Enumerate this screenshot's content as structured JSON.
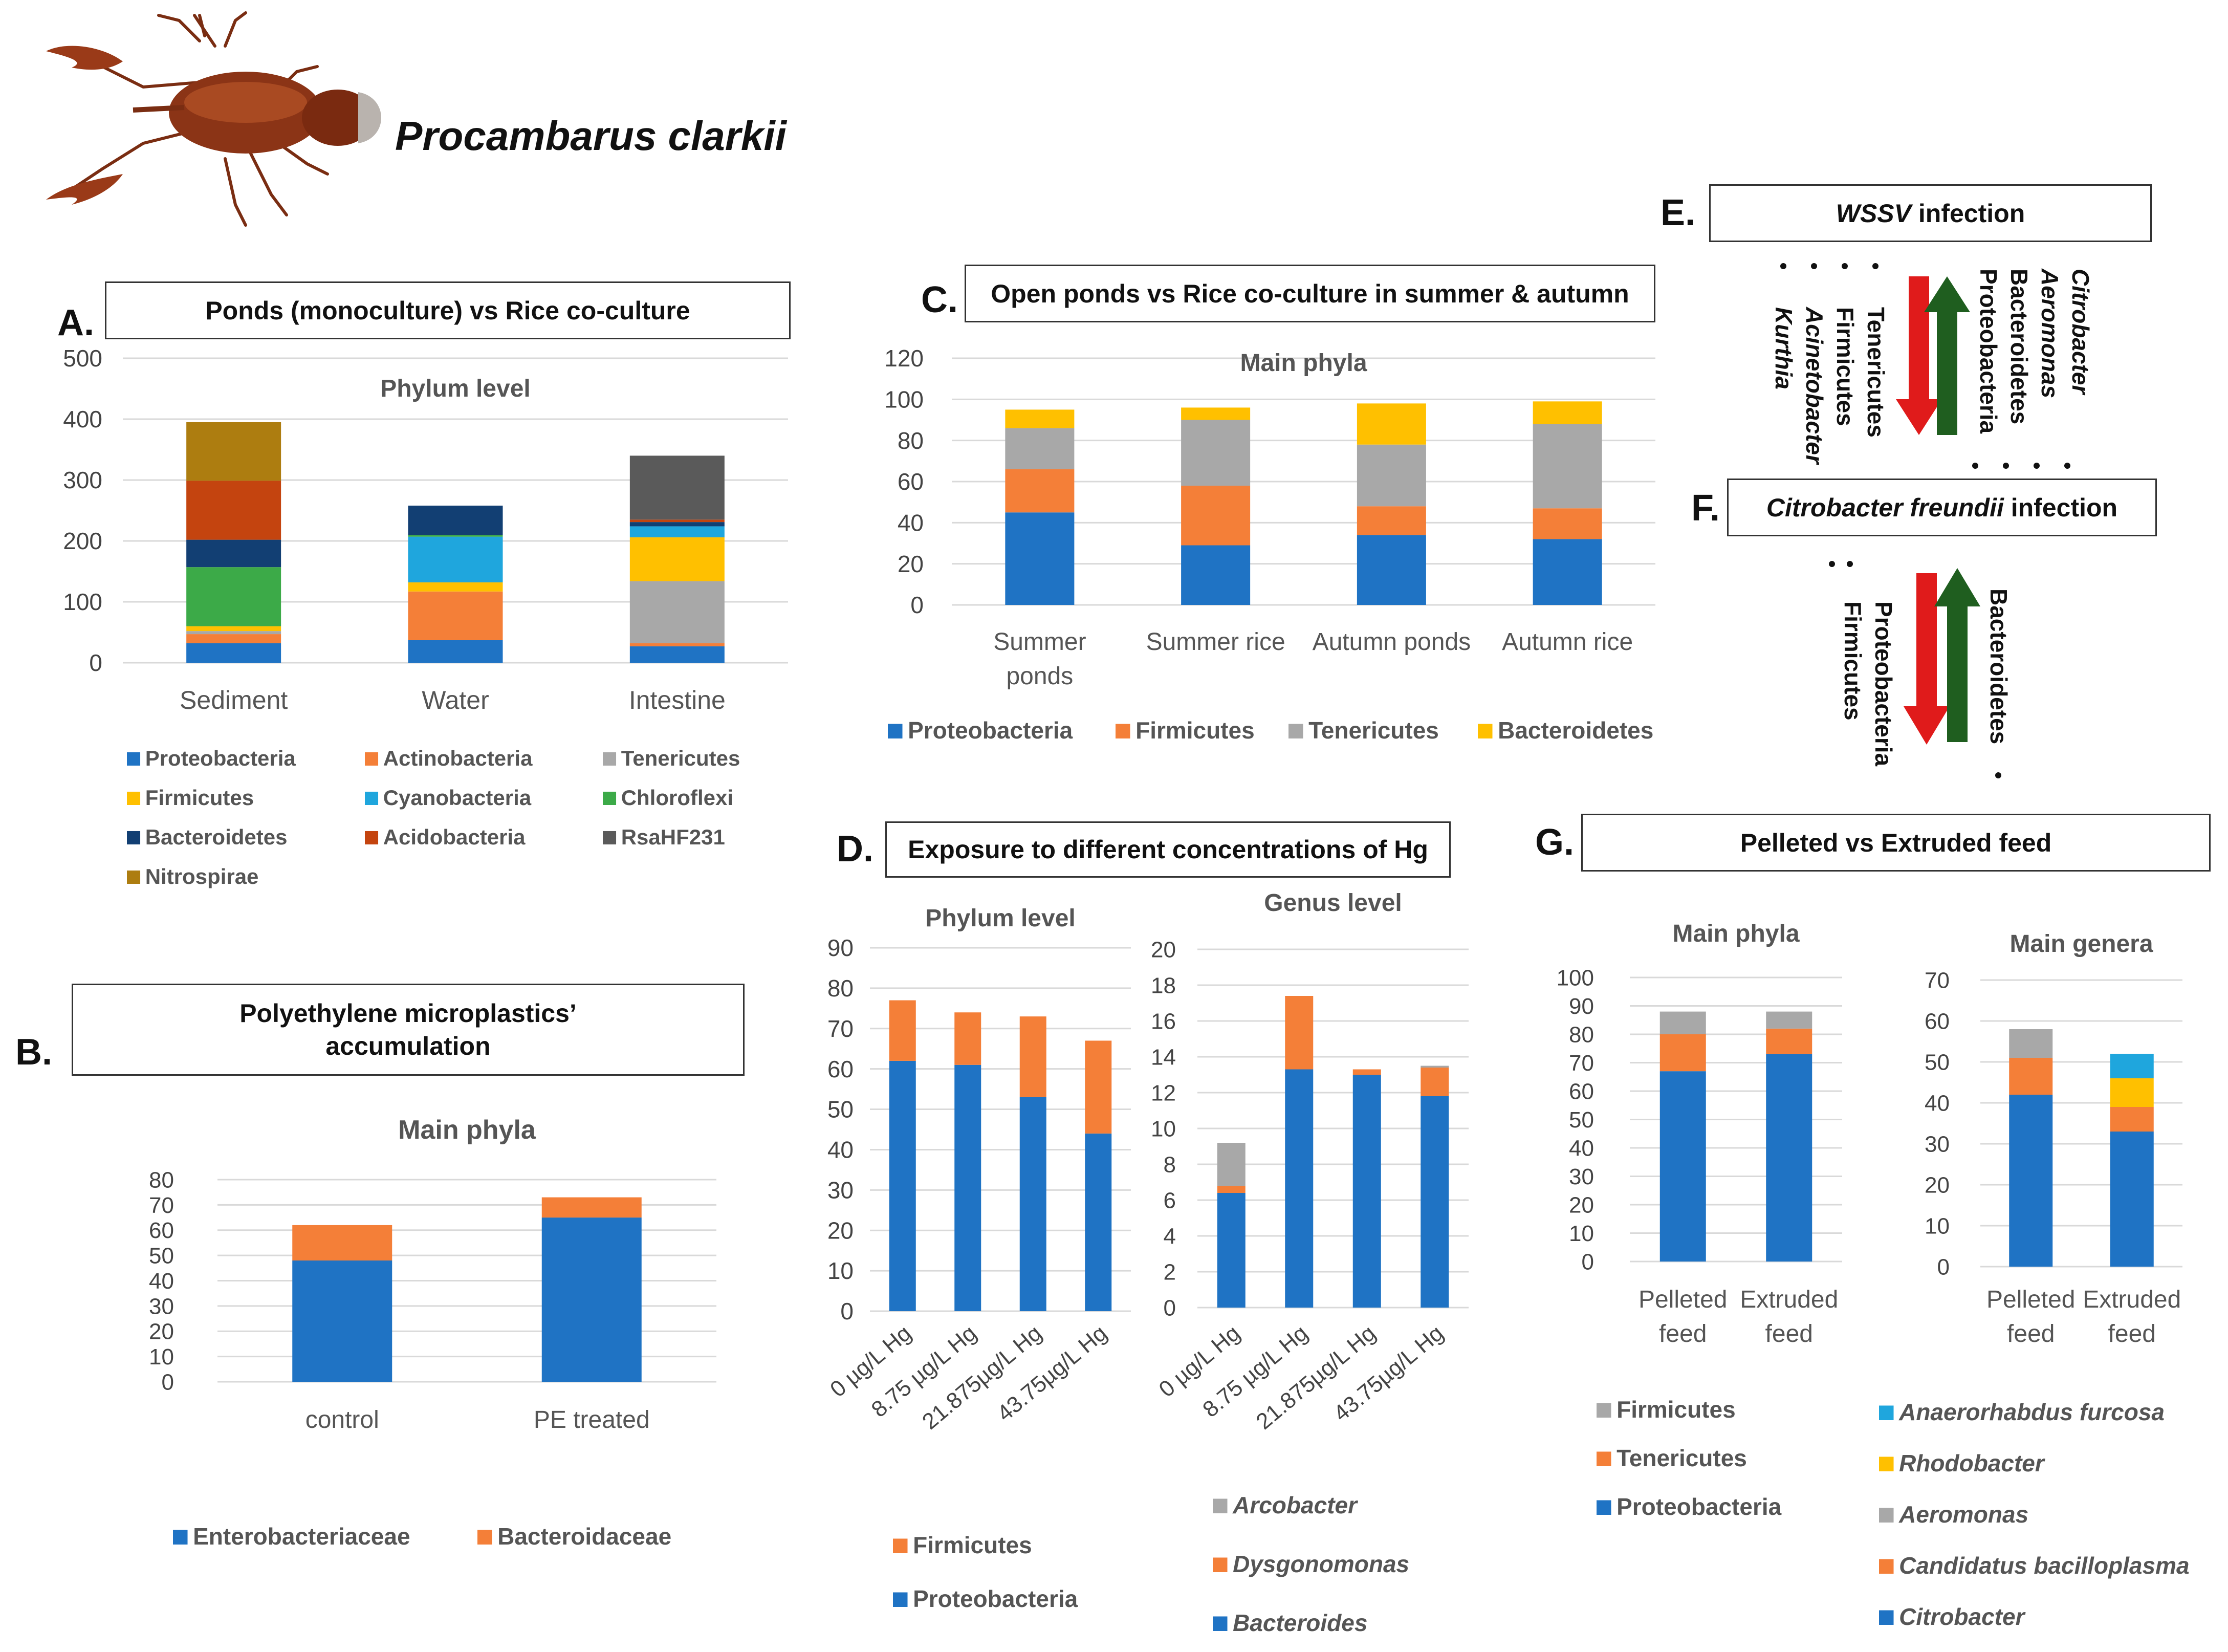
{
  "species": "Procambarus clarkii",
  "panels": {
    "a": {
      "letter": "A.",
      "title": "Ponds (monoculture) vs Rice co-culture"
    },
    "b": {
      "letter": "B.",
      "title_line1": "Polyethylene microplastics’",
      "title_line2": "accumulation"
    },
    "c": {
      "letter": "C.",
      "title": "Open ponds vs Rice co-culture in summer & autumn"
    },
    "d": {
      "letter": "D.",
      "title": "Exposure to different concentrations of Hg"
    },
    "e": {
      "letter": "E.",
      "title_italic": "WSSV",
      "title_rest": " infection",
      "down_taxa": [
        "Tenericutes",
        "Firmicutes",
        "Acinetobacter",
        "Kurthia"
      ],
      "down_italic": [
        false,
        false,
        true,
        true
      ],
      "up_taxa": [
        "Proteobacteria",
        "Bacteroidetes",
        "Aeromonas",
        "Citrobacter"
      ],
      "up_italic": [
        false,
        false,
        true,
        true
      ]
    },
    "f": {
      "letter": "F.",
      "title_italic": "Citrobacter freundii",
      "title_rest": " infection",
      "down_taxa": [
        "Proteobacteria",
        "Firmicutes"
      ],
      "up_taxa": [
        "Bacteroidetes"
      ]
    },
    "g": {
      "letter": "G.",
      "title": "Pelleted vs Extruded feed"
    }
  },
  "colors": {
    "arrow_down": "#e01b1b",
    "arrow_up": "#1f5e1f"
  },
  "chart_data": [
    {
      "id": "A",
      "type": "bar",
      "stacked": true,
      "title": "Phylum level",
      "categories": [
        "Sediment",
        "Water",
        "Intestine"
      ],
      "ylim": [
        0,
        500
      ],
      "yticks": [
        0,
        100,
        200,
        300,
        400,
        500
      ],
      "series": [
        {
          "name": "Proteobacteria",
          "color": "#1f73c4",
          "values": [
            32,
            37,
            27
          ]
        },
        {
          "name": "Actinobacteria",
          "color": "#f47f38",
          "values": [
            15,
            80,
            5
          ]
        },
        {
          "name": "Tenericutes",
          "color": "#a8a8a8",
          "values": [
            5,
            0,
            102
          ]
        },
        {
          "name": "Firmicutes",
          "color": "#ffc000",
          "values": [
            8,
            15,
            72
          ]
        },
        {
          "name": "Cyanobacteria",
          "color": "#1fa6dd",
          "values": [
            0,
            75,
            18
          ]
        },
        {
          "name": "Chloroflexi",
          "color": "#3caa48",
          "values": [
            97,
            3,
            0
          ]
        },
        {
          "name": "Bacteroidetes",
          "color": "#123f73",
          "values": [
            45,
            48,
            7
          ]
        },
        {
          "name": "Acidobacteria",
          "color": "#c4440f",
          "values": [
            97,
            0,
            4
          ]
        },
        {
          "name": "RsaHF231",
          "color": "#5a5a5a",
          "values": [
            0,
            0,
            105
          ]
        },
        {
          "name": "Nitrospirae",
          "color": "#ad7d10",
          "values": [
            96,
            0,
            0
          ]
        }
      ]
    },
    {
      "id": "B",
      "type": "bar",
      "stacked": true,
      "title": "Main phyla",
      "categories": [
        "control",
        "PE treated"
      ],
      "ylim": [
        0,
        80
      ],
      "yticks": [
        0,
        10,
        20,
        30,
        40,
        50,
        60,
        70,
        80
      ],
      "series": [
        {
          "name": "Enterobacteriaceae",
          "color": "#1f73c4",
          "values": [
            48,
            65
          ]
        },
        {
          "name": "Bacteroidaceae",
          "color": "#f47f38",
          "values": [
            14,
            8
          ]
        }
      ]
    },
    {
      "id": "C",
      "type": "bar",
      "stacked": true,
      "title": "Main phyla",
      "categories": [
        "Summer ponds",
        "Summer rice",
        "Autumn ponds",
        "Autumn rice"
      ],
      "ylim": [
        0,
        120
      ],
      "yticks": [
        0,
        20,
        40,
        60,
        80,
        100,
        120
      ],
      "series": [
        {
          "name": "Proteobacteria",
          "color": "#1f73c4",
          "values": [
            45,
            29,
            34,
            32
          ]
        },
        {
          "name": "Firmicutes",
          "color": "#f47f38",
          "values": [
            21,
            29,
            14,
            15
          ]
        },
        {
          "name": "Tenericutes",
          "color": "#a8a8a8",
          "values": [
            20,
            32,
            30,
            41
          ]
        },
        {
          "name": "Bacteroidetes",
          "color": "#ffc000",
          "values": [
            9,
            6,
            20,
            11
          ]
        }
      ]
    },
    {
      "id": "D1",
      "type": "bar",
      "stacked": true,
      "title": "Phylum level",
      "categories": [
        "0 µg/L Hg",
        "8.75 µg/L Hg",
        "21.875µg/L Hg",
        "43.75µg/L Hg"
      ],
      "ylim": [
        0,
        90
      ],
      "yticks": [
        0,
        10,
        20,
        30,
        40,
        50,
        60,
        70,
        80,
        90
      ],
      "series": [
        {
          "name": "Proteobacteria",
          "color": "#1f73c4",
          "values": [
            62,
            61,
            53,
            44
          ]
        },
        {
          "name": "Firmicutes",
          "color": "#f47f38",
          "values": [
            15,
            13,
            20,
            23
          ]
        }
      ]
    },
    {
      "id": "D2",
      "type": "bar",
      "stacked": true,
      "title": "Genus level",
      "categories": [
        "0 µg/L Hg",
        "8.75 µg/L Hg",
        "21.875µg/L Hg",
        "43.75µg/L Hg"
      ],
      "ylim": [
        0,
        20
      ],
      "yticks": [
        0,
        2,
        4,
        6,
        8,
        10,
        12,
        14,
        16,
        18,
        20
      ],
      "series": [
        {
          "name": "Bacteroides",
          "color": "#1f73c4",
          "values": [
            6.4,
            13.3,
            13.0,
            11.8
          ]
        },
        {
          "name": "Dysgonomonas",
          "color": "#f47f38",
          "values": [
            0.4,
            4.1,
            0.3,
            1.6
          ]
        },
        {
          "name": "Arcobacter",
          "color": "#a8a8a8",
          "values": [
            2.4,
            0,
            0,
            0.1
          ]
        }
      ]
    },
    {
      "id": "G1",
      "type": "bar",
      "stacked": true,
      "title": "Main phyla",
      "categories": [
        "Pelleted feed",
        "Extruded feed"
      ],
      "ylim": [
        0,
        100
      ],
      "yticks": [
        0,
        10,
        20,
        30,
        40,
        50,
        60,
        70,
        80,
        90,
        100
      ],
      "series": [
        {
          "name": "Proteobacteria",
          "color": "#1f73c4",
          "values": [
            67,
            73
          ]
        },
        {
          "name": "Tenericutes",
          "color": "#f47f38",
          "values": [
            13,
            9
          ]
        },
        {
          "name": "Firmicutes",
          "color": "#a8a8a8",
          "values": [
            8,
            6
          ]
        }
      ]
    },
    {
      "id": "G2",
      "type": "bar",
      "stacked": true,
      "title": "Main genera",
      "categories": [
        "Pelleted feed",
        "Extruded feed"
      ],
      "ylim": [
        0,
        70
      ],
      "yticks": [
        0,
        10,
        20,
        30,
        40,
        50,
        60,
        70
      ],
      "series": [
        {
          "name": "Citrobacter",
          "color": "#1f73c4",
          "values": [
            42,
            33
          ]
        },
        {
          "name": "Candidatus bacilloplasma",
          "color": "#f47f38",
          "values": [
            9,
            6
          ]
        },
        {
          "name": "Aeromonas",
          "color": "#a8a8a8",
          "values": [
            7,
            0
          ]
        },
        {
          "name": "Rhodobacter",
          "color": "#ffc000",
          "values": [
            0,
            7
          ]
        },
        {
          "name": "Anaerorhabdus furcosa",
          "color": "#1fa6dd",
          "values": [
            0,
            6
          ]
        }
      ]
    }
  ]
}
